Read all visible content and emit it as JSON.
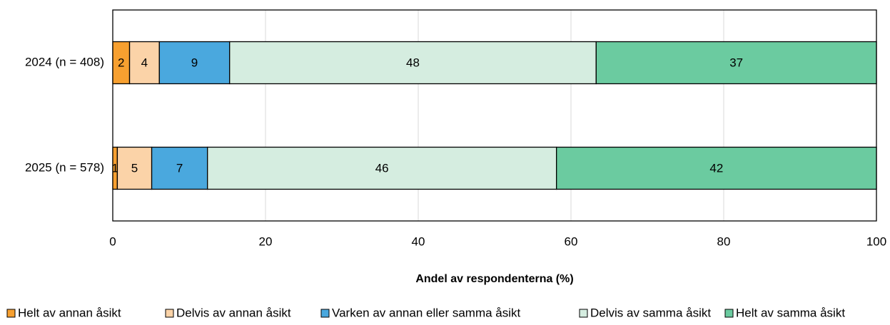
{
  "chart_data": {
    "type": "stacked-barh",
    "xlabel": "Andel av respondenterna (%)",
    "categories": [
      "2024 (n = 408)",
      "2025 (n = 578)"
    ],
    "series": [
      {
        "name": "Helt av annan åsikt",
        "color": "#f7a030",
        "values": [
          2.2,
          0.6
        ],
        "value_labels": [
          "2",
          "1"
        ]
      },
      {
        "name": "Delvis av annan åsikt",
        "color": "#fbd3a8",
        "values": [
          3.9,
          4.5
        ],
        "value_labels": [
          "4",
          "5"
        ]
      },
      {
        "name": "Varken av annan eller samma åsikt",
        "color": "#4aa8de",
        "values": [
          9.2,
          7.3
        ],
        "value_labels": [
          "9",
          "7"
        ]
      },
      {
        "name": "Delvis av samma åsikt",
        "color": "#d5ede0",
        "values": [
          48.0,
          45.7
        ],
        "value_labels": [
          "48",
          "46"
        ]
      },
      {
        "name": "Helt av samma åsikt",
        "color": "#6bcba0",
        "values": [
          36.7,
          41.9
        ],
        "value_labels": [
          "37",
          "42"
        ]
      }
    ],
    "xlim": [
      0,
      100
    ],
    "xticks": [
      0,
      20,
      40,
      60,
      80,
      100
    ],
    "grid": true,
    "legend": "bottom"
  }
}
